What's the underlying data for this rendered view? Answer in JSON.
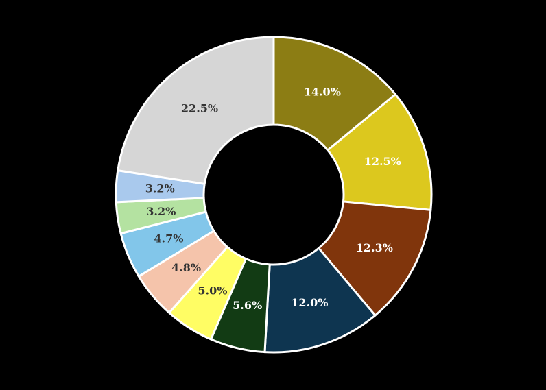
{
  "chart_data": {
    "type": "pie",
    "donut": true,
    "title": "",
    "legend": "none",
    "slices": [
      {
        "label": "14.0%",
        "value": 14.0,
        "color": "#8c7d14",
        "text_color": "#ffffff"
      },
      {
        "label": "12.5%",
        "value": 12.5,
        "color": "#dcc81e",
        "text_color": "#ffffff"
      },
      {
        "label": "12.3%",
        "value": 12.3,
        "color": "#80350c",
        "text_color": "#ffffff"
      },
      {
        "label": "12.0%",
        "value": 12.0,
        "color": "#0e3550",
        "text_color": "#ffffff"
      },
      {
        "label": "5.6%",
        "value": 5.6,
        "color": "#123b14",
        "text_color": "#ffffff"
      },
      {
        "label": "5.0%",
        "value": 5.0,
        "color": "#fffd64",
        "text_color": "#333333"
      },
      {
        "label": "4.8%",
        "value": 4.8,
        "color": "#f5c4ab",
        "text_color": "#333333"
      },
      {
        "label": "4.7%",
        "value": 4.7,
        "color": "#82c6ea",
        "text_color": "#333333"
      },
      {
        "label": "3.2%",
        "value": 3.2,
        "color": "#b4e2a1",
        "text_color": "#333333"
      },
      {
        "label": "3.2%",
        "value": 3.2,
        "color": "#a9c9ed",
        "text_color": "#333333"
      },
      {
        "label": "22.5%",
        "value": 22.5,
        "color": "#d6d6d6",
        "text_color": "#333333"
      }
    ]
  }
}
